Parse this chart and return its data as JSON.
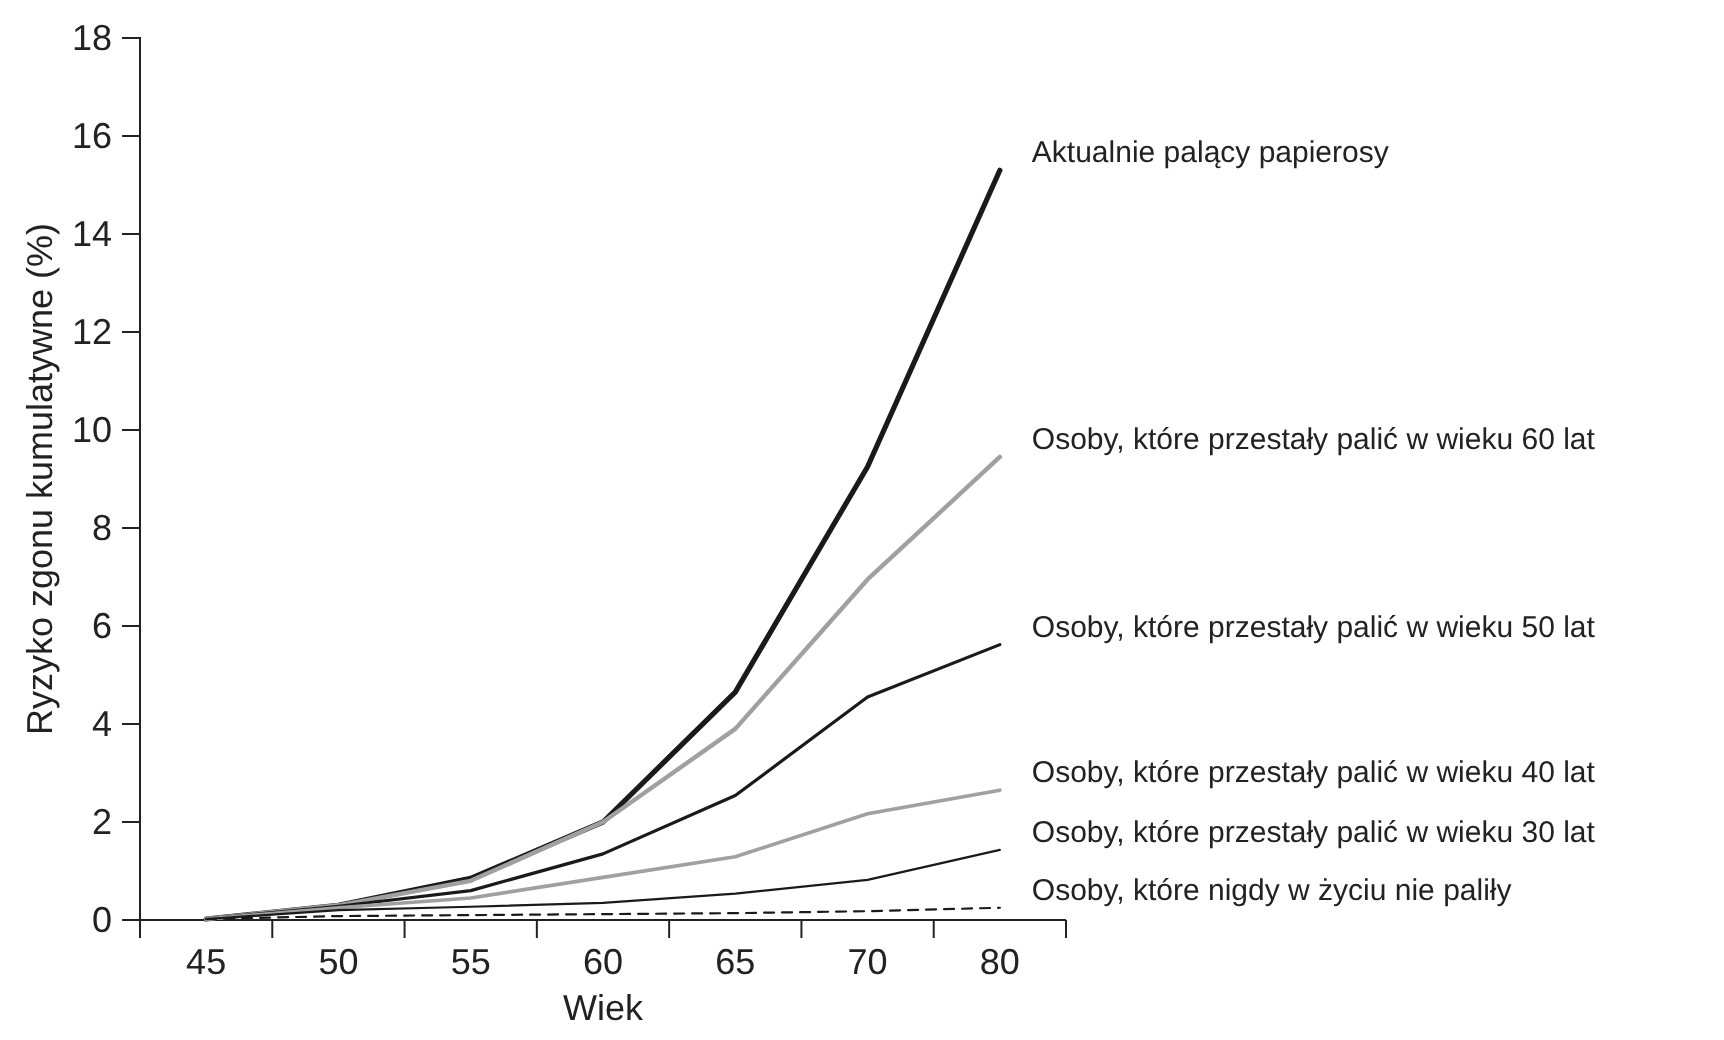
{
  "chart_data": {
    "type": "line",
    "xlabel": "Wiek",
    "ylabel": "Ryzyko zgonu  kumulatywne (%)",
    "categories": [
      "45",
      "50",
      "55",
      "60",
      "65",
      "70",
      "80"
    ],
    "ylim": [
      0,
      18
    ],
    "yticks": [
      0,
      2,
      4,
      6,
      8,
      10,
      12,
      14,
      16,
      18
    ],
    "grid": false,
    "legend": false,
    "marker": "none",
    "series": [
      {
        "name": "Aktualnie palący papierosy",
        "color": "#1a1a1a",
        "line_style": "solid",
        "values": [
          0.02,
          0.3,
          0.85,
          2.0,
          4.65,
          9.25,
          15.3
        ]
      },
      {
        "name": "Osoby, które przestały palić w wieku 60 lat",
        "color": "#a0a0a0",
        "line_style": "solid",
        "values": [
          0.02,
          0.3,
          0.8,
          2.0,
          3.9,
          6.95,
          9.45
        ]
      },
      {
        "name": "Osoby, które przestały palić w wieku 50 lat",
        "color": "#1a1a1a",
        "line_style": "solid",
        "values": [
          0.02,
          0.28,
          0.6,
          1.35,
          2.54,
          4.55,
          5.62
        ]
      },
      {
        "name": "Osoby, które przestały palić w wieku 40 lat",
        "color": "#a0a0a0",
        "line_style": "solid",
        "values": [
          0.02,
          0.25,
          0.45,
          0.87,
          1.29,
          2.17,
          2.65
        ]
      },
      {
        "name": "Osoby, które przestały palić w wieku 30 lat",
        "color": "#1a1a1a",
        "line_style": "solid",
        "values": [
          0.02,
          0.2,
          0.27,
          0.35,
          0.54,
          0.82,
          1.43
        ]
      },
      {
        "name": "Osoby, które nigdy w życiu nie paliły",
        "color": "#1a1a1a",
        "line_style": "dashed",
        "values": [
          0.02,
          0.08,
          0.1,
          0.12,
          0.14,
          0.18,
          0.25
        ]
      }
    ]
  }
}
